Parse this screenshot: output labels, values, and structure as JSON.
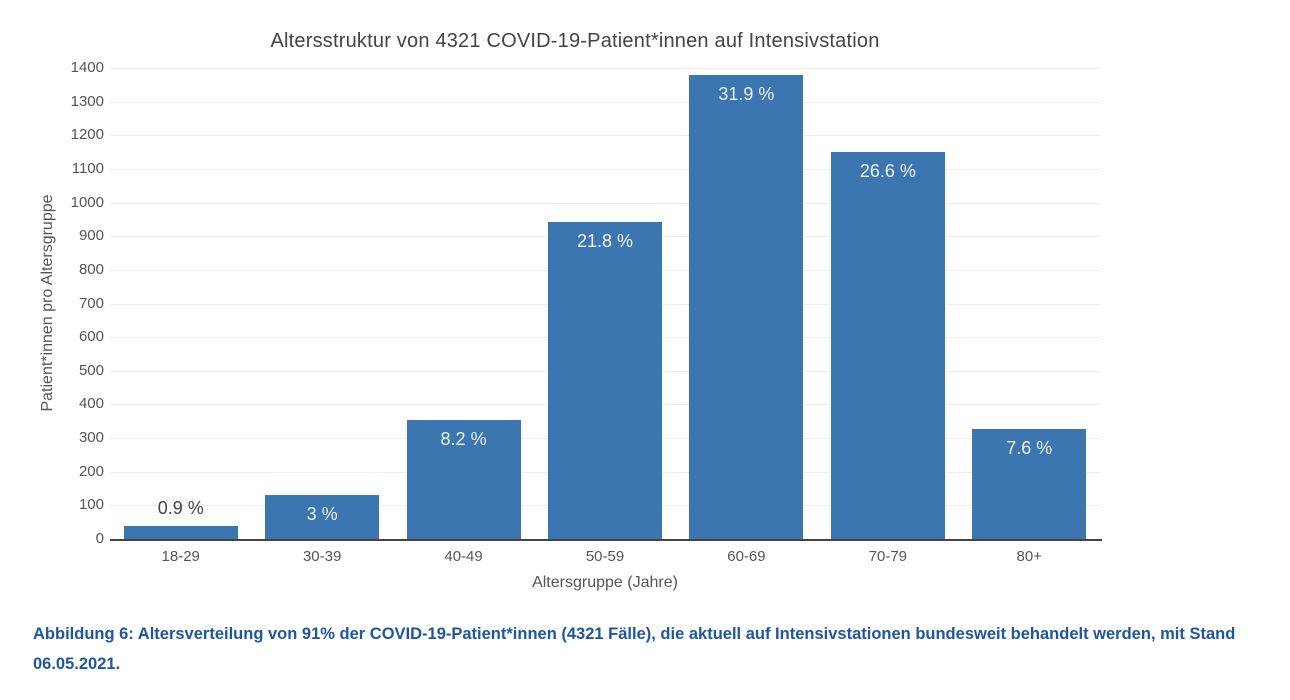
{
  "figure": {
    "caption": "Abbildung 6: Altersverteilung von 91% der COVID-19-Patient*innen (4321 Fälle), die aktuell auf Intensivstationen bundesweit behandelt werden, mit Stand 06.05.2021."
  },
  "chart_data": {
    "type": "bar",
    "title": "Altersstruktur von 4321 COVID-19-Patient*innen auf Intensivstation",
    "categories": [
      "18-29",
      "30-39",
      "40-49",
      "50-59",
      "60-69",
      "70-79",
      "80+"
    ],
    "values": [
      39,
      130,
      354,
      942,
      1378,
      1149,
      328
    ],
    "bar_labels": [
      "0.9 %",
      "3 %",
      "8.2 %",
      "21.8 %",
      "31.9 %",
      "26.6 %",
      "7.6 %"
    ],
    "xlabel": "Altersgruppe (Jahre)",
    "ylabel": "Patient*innen pro Altersgruppe",
    "ylim": [
      0,
      1400
    ],
    "yticks": [
      0,
      100,
      200,
      300,
      400,
      500,
      600,
      700,
      800,
      900,
      1000,
      1100,
      1200,
      1300,
      1400
    ],
    "grid": "horizontal",
    "legend": "none",
    "colors": {
      "bar": "#3b76b0",
      "bar_label_inside": "#eef3f8",
      "bar_label_outside": "#444444",
      "gridline": "#ededed",
      "axis_line": "#444444",
      "tick_text": "#555555",
      "title_text": "#444444",
      "caption_text": "#1f56a0"
    }
  }
}
